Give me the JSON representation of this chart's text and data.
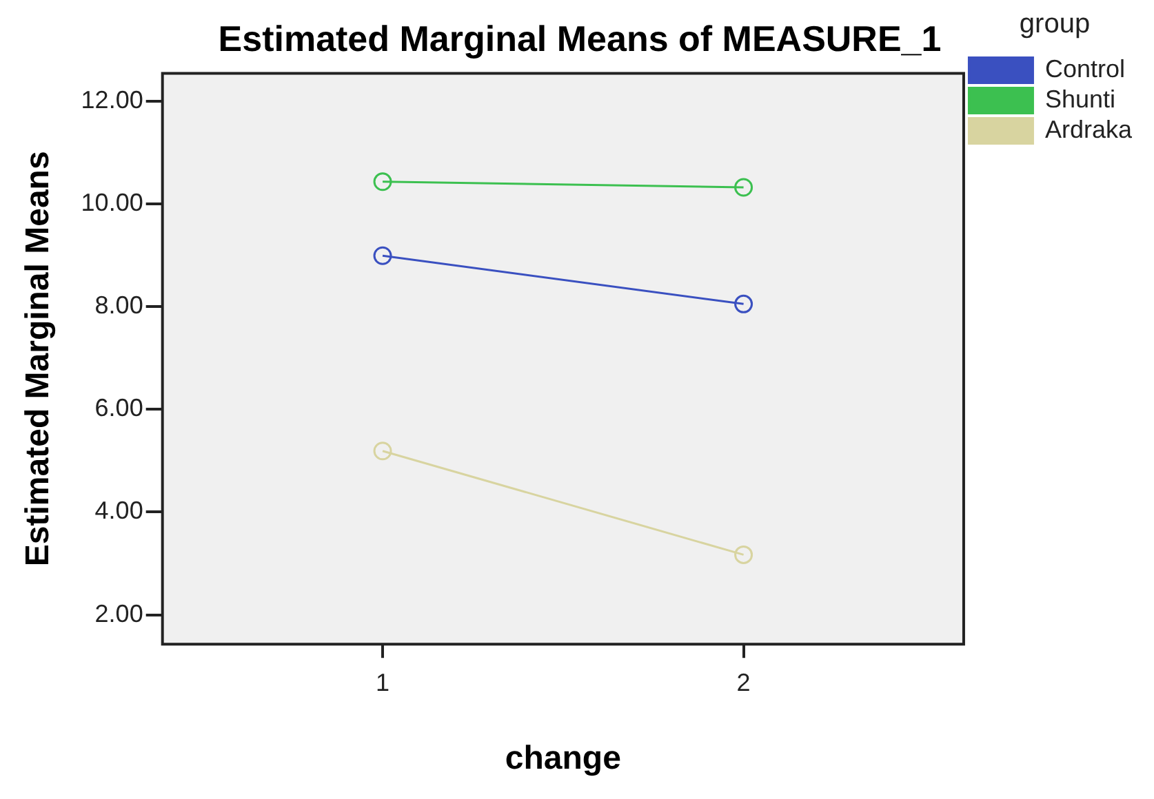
{
  "chart_data": {
    "type": "line",
    "title": "Estimated Marginal Means of MEASURE_1",
    "xlabel": "change",
    "ylabel": "Estimated Marginal Means",
    "legend_title": "group",
    "legend": "right",
    "grid": false,
    "marker": "circle",
    "line_style": "solid",
    "x": [
      1,
      2
    ],
    "xlim": [
      0.39,
      2.61
    ],
    "xticks": [
      1,
      2
    ],
    "ylim": [
      1.43,
      12.54
    ],
    "yticks": [
      {
        "value": 2,
        "label": "2.00"
      },
      {
        "value": 4,
        "label": "4.00"
      },
      {
        "value": 6,
        "label": "6.00"
      },
      {
        "value": 8,
        "label": "8.00"
      },
      {
        "value": 10,
        "label": "10.00"
      },
      {
        "value": 12,
        "label": "12.00"
      }
    ],
    "series": [
      {
        "name": "Control",
        "color": "#3a50c0",
        "values": [
          8.99,
          8.05
        ]
      },
      {
        "name": "Shunti",
        "color": "#3cc050",
        "values": [
          10.43,
          10.32
        ]
      },
      {
        "name": "Ardraka",
        "color": "#d8d4a0",
        "values": [
          5.19,
          3.17
        ]
      }
    ]
  }
}
